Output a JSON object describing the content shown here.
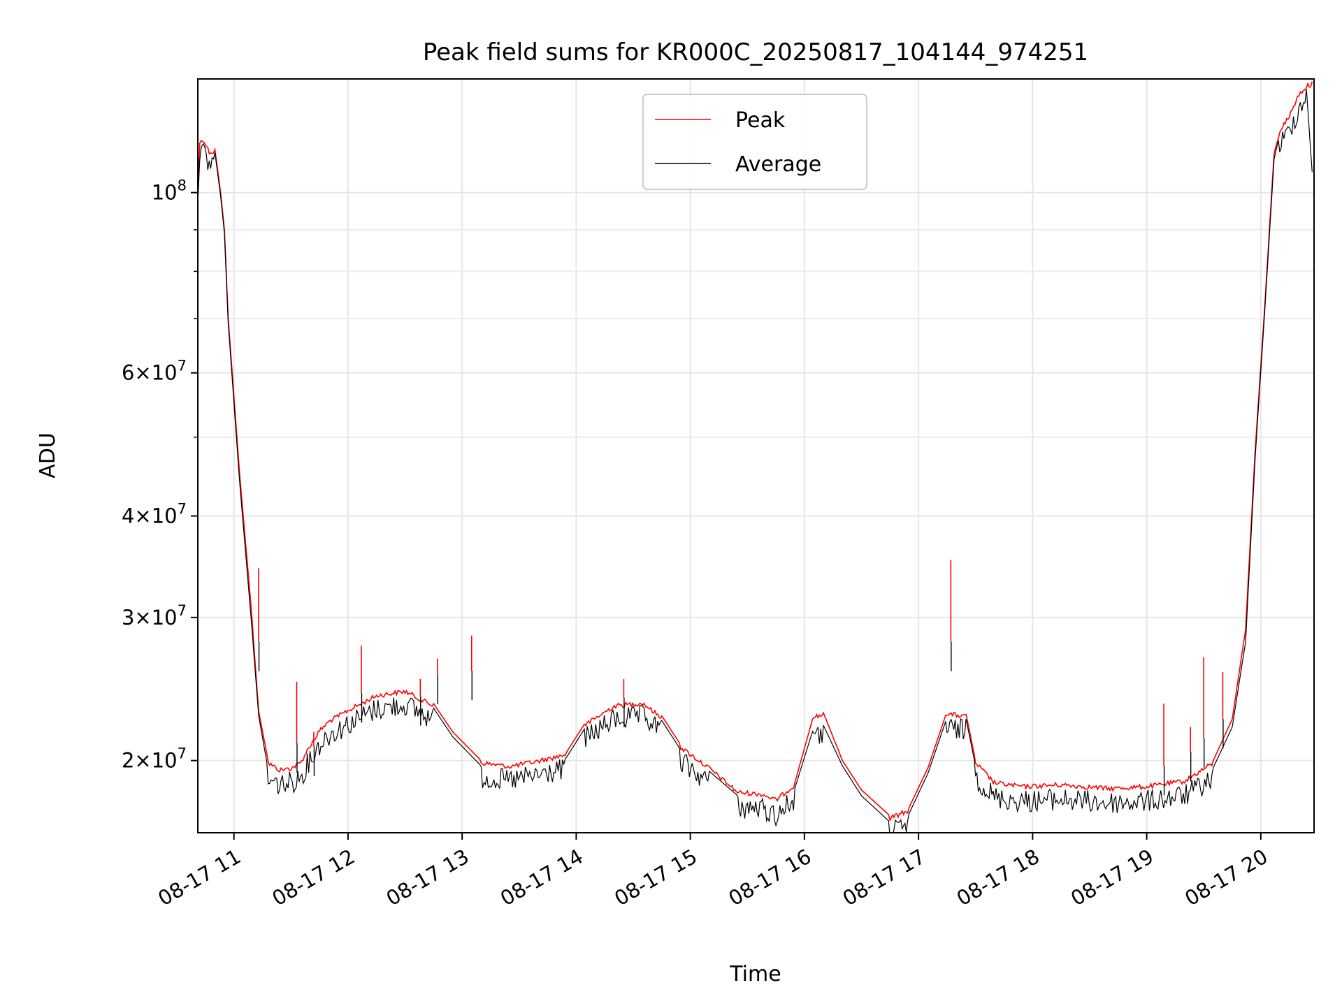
{
  "chart_data": {
    "type": "line",
    "title": "Peak field sums for KR000C_20250817_104144_974251",
    "xlabel": "Time",
    "ylabel": "ADU",
    "xscale": "time",
    "yscale": "log",
    "xlim": [
      "2025-08-17 10:41",
      "2025-08-17 20:28"
    ],
    "ylim": [
      16300000,
      138000000
    ],
    "grid": true,
    "legend_position": "top-center",
    "x_ticks": [
      {
        "t": "2025-08-17 11:00",
        "label": "08-17 11"
      },
      {
        "t": "2025-08-17 12:00",
        "label": "08-17 12"
      },
      {
        "t": "2025-08-17 13:00",
        "label": "08-17 13"
      },
      {
        "t": "2025-08-17 14:00",
        "label": "08-17 14"
      },
      {
        "t": "2025-08-17 15:00",
        "label": "08-17 15"
      },
      {
        "t": "2025-08-17 16:00",
        "label": "08-17 16"
      },
      {
        "t": "2025-08-17 17:00",
        "label": "08-17 17"
      },
      {
        "t": "2025-08-17 18:00",
        "label": "08-17 18"
      },
      {
        "t": "2025-08-17 19:00",
        "label": "08-17 19"
      },
      {
        "t": "2025-08-17 20:00",
        "label": "08-17 20"
      }
    ],
    "y_major_ticks": [
      {
        "value": 20000000,
        "mantissa": "2",
        "exp": "7"
      },
      {
        "value": 30000000,
        "mantissa": "3",
        "exp": "7"
      },
      {
        "value": 40000000,
        "mantissa": "4",
        "exp": "7"
      },
      {
        "value": 60000000,
        "mantissa": "6",
        "exp": "7"
      },
      {
        "value": 100000000,
        "mantissa": "",
        "exp": "8"
      }
    ],
    "y_minor_ticks": [
      50000000,
      70000000,
      80000000,
      90000000
    ],
    "series": [
      {
        "name": "Peak",
        "color": "#ff0000",
        "x": [
          "2025-08-17 10:41",
          "2025-08-17 10:42",
          "2025-08-17 10:44",
          "2025-08-17 10:47",
          "2025-08-17 10:50",
          "2025-08-17 10:53",
          "2025-08-17 10:55",
          "2025-08-17 10:57",
          "2025-08-17 11:03",
          "2025-08-17 11:09",
          "2025-08-17 11:13",
          "2025-08-17 11:18",
          "2025-08-17 11:24",
          "2025-08-17 11:30",
          "2025-08-17 11:35",
          "2025-08-17 11:40",
          "2025-08-17 11:45",
          "2025-08-17 11:50",
          "2025-08-17 12:00",
          "2025-08-17 12:15",
          "2025-08-17 12:30",
          "2025-08-17 12:45",
          "2025-08-17 12:55",
          "2025-08-17 13:10",
          "2025-08-17 13:25",
          "2025-08-17 13:40",
          "2025-08-17 13:55",
          "2025-08-17 14:05",
          "2025-08-17 14:20",
          "2025-08-17 14:35",
          "2025-08-17 14:45",
          "2025-08-17 14:55",
          "2025-08-17 15:10",
          "2025-08-17 15:25",
          "2025-08-17 15:38",
          "2025-08-17 15:45",
          "2025-08-17 15:55",
          "2025-08-17 16:05",
          "2025-08-17 16:10",
          "2025-08-17 16:20",
          "2025-08-17 16:30",
          "2025-08-17 16:45",
          "2025-08-17 16:55",
          "2025-08-17 17:05",
          "2025-08-17 17:15",
          "2025-08-17 17:25",
          "2025-08-17 17:30",
          "2025-08-17 17:40",
          "2025-08-17 17:55",
          "2025-08-17 18:15",
          "2025-08-17 18:40",
          "2025-08-17 19:00",
          "2025-08-17 19:20",
          "2025-08-17 19:35",
          "2025-08-17 19:45",
          "2025-08-17 19:52",
          "2025-08-17 19:57",
          "2025-08-17 20:02",
          "2025-08-17 20:07",
          "2025-08-17 20:10",
          "2025-08-17 20:15",
          "2025-08-17 20:20",
          "2025-08-17 20:24",
          "2025-08-17 20:27"
        ],
        "values": [
          99000000,
          116000000,
          117000000,
          113000000,
          113000000,
          100000000,
          90000000,
          70000000,
          45000000,
          31000000,
          23000000,
          20000000,
          19600000,
          19700000,
          20000000,
          21000000,
          21900000,
          22500000,
          23200000,
          24200000,
          24500000,
          23500000,
          21700000,
          20000000,
          19800000,
          20100000,
          20500000,
          22300000,
          23500000,
          23700000,
          22700000,
          20900000,
          19700000,
          18400000,
          18300000,
          18000000,
          18800000,
          22800000,
          22900000,
          20000000,
          18400000,
          17100000,
          17500000,
          19600000,
          23000000,
          22800000,
          20000000,
          18900000,
          18700000,
          18800000,
          18600000,
          18700000,
          19000000,
          20000000,
          22500000,
          29000000,
          48000000,
          72000000,
          112000000,
          120000000,
          125000000,
          133000000,
          136000000,
          137000000
        ]
      },
      {
        "name": "Average",
        "color": "#000000",
        "x": [
          "2025-08-17 10:41",
          "2025-08-17 10:42",
          "2025-08-17 10:44",
          "2025-08-17 10:47",
          "2025-08-17 10:50",
          "2025-08-17 10:53",
          "2025-08-17 10:55",
          "2025-08-17 10:57",
          "2025-08-17 11:03",
          "2025-08-17 11:09",
          "2025-08-17 11:13",
          "2025-08-17 11:18",
          "2025-08-17 11:24",
          "2025-08-17 11:30",
          "2025-08-17 11:35",
          "2025-08-17 11:40",
          "2025-08-17 11:45",
          "2025-08-17 11:50",
          "2025-08-17 12:00",
          "2025-08-17 12:15",
          "2025-08-17 12:30",
          "2025-08-17 12:45",
          "2025-08-17 12:55",
          "2025-08-17 13:10",
          "2025-08-17 13:25",
          "2025-08-17 13:40",
          "2025-08-17 13:55",
          "2025-08-17 14:05",
          "2025-08-17 14:20",
          "2025-08-17 14:35",
          "2025-08-17 14:45",
          "2025-08-17 14:55",
          "2025-08-17 15:10",
          "2025-08-17 15:25",
          "2025-08-17 15:38",
          "2025-08-17 15:45",
          "2025-08-17 15:55",
          "2025-08-17 16:05",
          "2025-08-17 16:10",
          "2025-08-17 16:20",
          "2025-08-17 16:30",
          "2025-08-17 16:45",
          "2025-08-17 16:55",
          "2025-08-17 17:05",
          "2025-08-17 17:15",
          "2025-08-17 17:25",
          "2025-08-17 17:30",
          "2025-08-17 17:40",
          "2025-08-17 17:55",
          "2025-08-17 18:15",
          "2025-08-17 18:40",
          "2025-08-17 19:00",
          "2025-08-17 19:20",
          "2025-08-17 19:35",
          "2025-08-17 19:45",
          "2025-08-17 19:52",
          "2025-08-17 19:57",
          "2025-08-17 20:02",
          "2025-08-17 20:07",
          "2025-08-17 20:10",
          "2025-08-17 20:15",
          "2025-08-17 20:20",
          "2025-08-17 20:24",
          "2025-08-17 20:27"
        ],
        "values": [
          97000000,
          115000000,
          116000000,
          112000000,
          112000000,
          99000000,
          89000000,
          69000000,
          44000000,
          30000000,
          22700000,
          19500000,
          19300000,
          19400000,
          19700000,
          20700000,
          21600000,
          22200000,
          22900000,
          23900000,
          24200000,
          23200000,
          21400000,
          19700000,
          19500000,
          19800000,
          20200000,
          22000000,
          23200000,
          23400000,
          22400000,
          20600000,
          19400000,
          18100000,
          18000000,
          17700000,
          18500000,
          22000000,
          22100000,
          19700000,
          18100000,
          16800000,
          17200000,
          19300000,
          22600000,
          22500000,
          19700000,
          18600000,
          18400000,
          18500000,
          18300000,
          18400000,
          18700000,
          19600000,
          22000000,
          28000000,
          47000000,
          71000000,
          110000000,
          118000000,
          123000000,
          131000000,
          134000000,
          106000000
        ]
      }
    ],
    "spikes": [
      {
        "t": "2025-08-17 11:13",
        "peak": 34500000,
        "avg": 28000000
      },
      {
        "t": "2025-08-17 11:33",
        "peak": 25000000,
        "avg": 21000000
      },
      {
        "t": "2025-08-17 11:42",
        "peak": 21700000,
        "avg": 20800000
      },
      {
        "t": "2025-08-17 12:07",
        "peak": 27700000,
        "avg": 24200000
      },
      {
        "t": "2025-08-17 12:38",
        "peak": 25200000,
        "avg": 24000000
      },
      {
        "t": "2025-08-17 12:47",
        "peak": 26700000,
        "avg": 25500000
      },
      {
        "t": "2025-08-17 13:05",
        "peak": 28500000,
        "avg": 25800000
      },
      {
        "t": "2025-08-17 14:25",
        "peak": 25200000,
        "avg": 23900000
      },
      {
        "t": "2025-08-17 17:17",
        "peak": 35300000,
        "avg": 28000000
      },
      {
        "t": "2025-08-17 19:09",
        "peak": 23500000,
        "avg": 19700000
      },
      {
        "t": "2025-08-17 19:23",
        "peak": 22000000,
        "avg": 20500000
      },
      {
        "t": "2025-08-17 19:30",
        "peak": 26800000,
        "avg": 21300000
      },
      {
        "t": "2025-08-17 19:40",
        "peak": 25700000,
        "avg": 22500000
      }
    ]
  }
}
